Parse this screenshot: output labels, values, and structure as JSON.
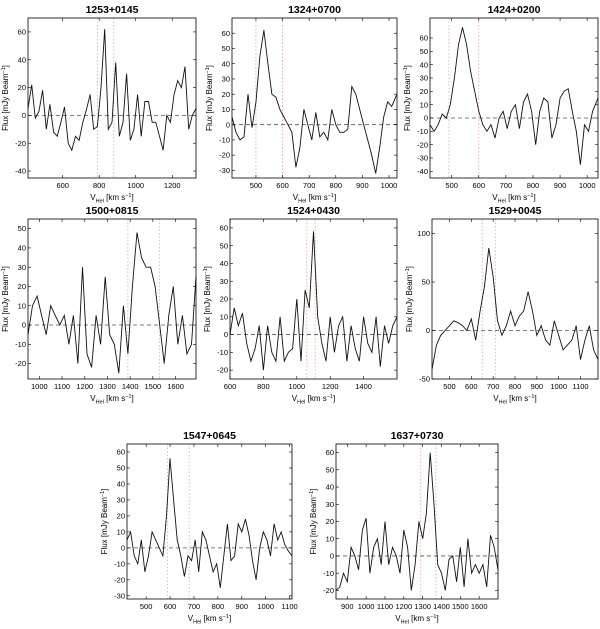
{
  "figure": {
    "x_label_main": "V",
    "x_label_sub": "Hel",
    "x_label_units": " [km s",
    "x_label_sup": "−1",
    "x_label_end": "]",
    "y_label_main": "Flux [mJy Beam",
    "y_label_sup": "−1",
    "y_label_end": "]"
  },
  "chart_data": [
    {
      "type": "line",
      "title": "1253+0145",
      "xlim": [
        410,
        1330
      ],
      "ylim": [
        -45,
        70
      ],
      "xticks": [
        600,
        800,
        1000,
        1200
      ],
      "yticks": [
        -40,
        -20,
        0,
        20,
        40,
        60
      ],
      "zero_line": true,
      "markers": [
        790,
        880
      ],
      "x": [
        410,
        430,
        450,
        470,
        490,
        510,
        530,
        550,
        570,
        590,
        610,
        630,
        650,
        670,
        690,
        710,
        730,
        750,
        770,
        790,
        810,
        830,
        850,
        870,
        890,
        910,
        930,
        950,
        970,
        990,
        1010,
        1030,
        1050,
        1070,
        1090,
        1110,
        1130,
        1150,
        1170,
        1190,
        1210,
        1230,
        1250,
        1270,
        1290,
        1310,
        1330
      ],
      "y": [
        5,
        22,
        -2,
        3,
        18,
        -10,
        8,
        -12,
        -15,
        -5,
        6,
        -20,
        -25,
        -15,
        -18,
        -5,
        4,
        15,
        -10,
        -8,
        20,
        62,
        -10,
        -5,
        38,
        -15,
        -5,
        30,
        -18,
        -10,
        15,
        -15,
        10,
        10,
        -5,
        -5,
        -15,
        -25,
        0,
        -5,
        15,
        25,
        20,
        35,
        -10,
        0,
        5
      ]
    },
    {
      "type": "line",
      "title": "1324+0700",
      "xlim": [
        410,
        1030
      ],
      "ylim": [
        -35,
        70
      ],
      "xticks": [
        500,
        600,
        700,
        800,
        900,
        1000
      ],
      "yticks": [
        -30,
        -20,
        -10,
        0,
        10,
        20,
        30,
        40,
        50,
        60
      ],
      "zero_line": true,
      "markers": [
        500,
        600
      ],
      "x": [
        410,
        425,
        440,
        455,
        470,
        485,
        500,
        515,
        530,
        545,
        560,
        575,
        590,
        605,
        620,
        635,
        650,
        665,
        680,
        695,
        710,
        725,
        740,
        755,
        770,
        785,
        800,
        815,
        830,
        845,
        860,
        875,
        890,
        905,
        920,
        935,
        950,
        965,
        980,
        995,
        1010,
        1030
      ],
      "y": [
        5,
        -5,
        -10,
        -8,
        20,
        -2,
        15,
        45,
        62,
        40,
        20,
        18,
        10,
        5,
        0,
        -5,
        -28,
        -15,
        10,
        0,
        -10,
        8,
        -8,
        -5,
        -10,
        10,
        0,
        -5,
        -5,
        -3,
        25,
        20,
        10,
        0,
        -10,
        -20,
        -32,
        -15,
        5,
        15,
        12,
        20
      ]
    },
    {
      "type": "line",
      "title": "1424+0200",
      "xlim": [
        420,
        1040
      ],
      "ylim": [
        -45,
        75
      ],
      "xticks": [
        500,
        600,
        700,
        800,
        900,
        1000
      ],
      "yticks": [
        -40,
        -30,
        -20,
        -10,
        0,
        10,
        20,
        30,
        40,
        50,
        60
      ],
      "zero_line": true,
      "markers": [
        490,
        600
      ],
      "x": [
        420,
        435,
        450,
        465,
        480,
        495,
        510,
        525,
        540,
        555,
        570,
        585,
        600,
        615,
        630,
        645,
        660,
        675,
        690,
        705,
        720,
        735,
        750,
        765,
        780,
        795,
        810,
        825,
        840,
        855,
        870,
        885,
        900,
        915,
        930,
        945,
        960,
        975,
        990,
        1005,
        1020,
        1040
      ],
      "y": [
        -5,
        -10,
        -5,
        3,
        0,
        10,
        30,
        55,
        68,
        55,
        35,
        20,
        5,
        -5,
        -10,
        -5,
        -15,
        0,
        5,
        -8,
        5,
        10,
        -8,
        12,
        18,
        5,
        -20,
        5,
        15,
        12,
        -15,
        -5,
        15,
        20,
        22,
        5,
        -10,
        -35,
        -5,
        -10,
        5,
        15
      ]
    },
    {
      "type": "line",
      "title": "1500+0815",
      "xlim": [
        950,
        1690
      ],
      "ylim": [
        -28,
        55
      ],
      "xticks": [
        1000,
        1100,
        1200,
        1300,
        1400,
        1500,
        1600
      ],
      "yticks": [
        -20,
        -10,
        0,
        10,
        20,
        30,
        40,
        50
      ],
      "zero_line": true,
      "markers": [
        1390,
        1530
      ],
      "x": [
        950,
        970,
        990,
        1010,
        1030,
        1050,
        1070,
        1090,
        1110,
        1130,
        1150,
        1170,
        1190,
        1210,
        1230,
        1250,
        1270,
        1290,
        1310,
        1330,
        1350,
        1370,
        1390,
        1410,
        1430,
        1450,
        1470,
        1490,
        1510,
        1530,
        1550,
        1570,
        1590,
        1610,
        1630,
        1650,
        1670,
        1690
      ],
      "y": [
        -5,
        10,
        15,
        5,
        -5,
        10,
        5,
        0,
        5,
        -10,
        5,
        -20,
        30,
        -15,
        -22,
        5,
        -10,
        25,
        -5,
        -10,
        -25,
        10,
        -15,
        20,
        48,
        35,
        30,
        30,
        20,
        0,
        -20,
        5,
        20,
        -10,
        5,
        -15,
        -10,
        25
      ]
    },
    {
      "type": "line",
      "title": "1524+0430",
      "xlim": [
        600,
        1600
      ],
      "ylim": [
        -25,
        65
      ],
      "xticks": [
        600,
        800,
        1000,
        1200,
        1400
      ],
      "yticks": [
        -20,
        -10,
        0,
        10,
        20,
        30,
        40,
        50,
        60
      ],
      "zero_line": true,
      "markers": [
        1060,
        1110
      ],
      "x": [
        600,
        625,
        650,
        675,
        700,
        725,
        750,
        775,
        800,
        825,
        850,
        875,
        900,
        925,
        950,
        975,
        1000,
        1025,
        1050,
        1075,
        1100,
        1125,
        1150,
        1175,
        1200,
        1225,
        1250,
        1275,
        1300,
        1325,
        1350,
        1375,
        1400,
        1425,
        1450,
        1475,
        1500,
        1525,
        1550,
        1575,
        1600
      ],
      "y": [
        0,
        15,
        5,
        12,
        -5,
        -15,
        -8,
        5,
        -20,
        5,
        -10,
        -15,
        10,
        -15,
        -10,
        -8,
        20,
        -15,
        25,
        15,
        58,
        10,
        -5,
        -15,
        10,
        -10,
        5,
        10,
        -15,
        5,
        -8,
        -15,
        10,
        -5,
        -10,
        10,
        -18,
        5,
        -5,
        5,
        10
      ]
    },
    {
      "type": "line",
      "title": "1529+0045",
      "xlim": [
        420,
        1180
      ],
      "ylim": [
        -50,
        115
      ],
      "xticks": [
        500,
        600,
        700,
        800,
        900,
        1000,
        1100
      ],
      "yticks": [
        -50,
        0,
        50,
        100
      ],
      "zero_line": true,
      "markers": [
        650,
        710
      ],
      "x": [
        420,
        440,
        460,
        480,
        500,
        520,
        540,
        560,
        580,
        600,
        620,
        640,
        660,
        680,
        700,
        720,
        740,
        760,
        780,
        800,
        820,
        840,
        860,
        880,
        900,
        920,
        940,
        960,
        980,
        1000,
        1020,
        1040,
        1060,
        1080,
        1100,
        1120,
        1140,
        1160,
        1180
      ],
      "y": [
        -40,
        -15,
        -5,
        0,
        5,
        10,
        8,
        5,
        0,
        12,
        -10,
        20,
        45,
        85,
        55,
        10,
        -5,
        5,
        20,
        5,
        15,
        20,
        40,
        20,
        -5,
        5,
        -10,
        -15,
        10,
        -5,
        -20,
        -15,
        -10,
        5,
        -30,
        -10,
        5,
        -20,
        -30
      ]
    },
    {
      "type": "line",
      "title": "1547+0645",
      "xlim": [
        420,
        1110
      ],
      "ylim": [
        -32,
        65
      ],
      "xticks": [
        500,
        600,
        700,
        800,
        900,
        1000,
        1100
      ],
      "yticks": [
        -30,
        -20,
        -10,
        0,
        10,
        20,
        30,
        40,
        50,
        60
      ],
      "zero_line": true,
      "markers": [
        590,
        680
      ],
      "x": [
        420,
        435,
        450,
        465,
        480,
        495,
        510,
        525,
        540,
        555,
        570,
        585,
        600,
        615,
        630,
        645,
        660,
        675,
        690,
        705,
        720,
        735,
        750,
        765,
        780,
        795,
        810,
        825,
        840,
        855,
        870,
        885,
        900,
        915,
        930,
        945,
        960,
        975,
        990,
        1005,
        1020,
        1035,
        1050,
        1065,
        1080,
        1095,
        1110
      ],
      "y": [
        5,
        10,
        -5,
        -10,
        5,
        -15,
        -5,
        10,
        5,
        0,
        -5,
        20,
        56,
        30,
        5,
        -5,
        -18,
        -5,
        -8,
        5,
        -15,
        10,
        5,
        -5,
        -15,
        -10,
        -25,
        -5,
        15,
        -8,
        -5,
        15,
        10,
        18,
        8,
        -8,
        -20,
        0,
        10,
        5,
        -5,
        15,
        5,
        10,
        2,
        -2,
        -5
      ]
    },
    {
      "type": "line",
      "title": "1637+0730",
      "xlim": [
        840,
        1700
      ],
      "ylim": [
        -25,
        65
      ],
      "xticks": [
        900,
        1000,
        1100,
        1200,
        1300,
        1400,
        1500,
        1600
      ],
      "yticks": [
        -20,
        -10,
        0,
        10,
        20,
        30,
        40,
        50,
        60
      ],
      "zero_line": true,
      "markers": [
        1290,
        1370
      ],
      "x": [
        840,
        860,
        880,
        900,
        920,
        940,
        960,
        980,
        1000,
        1020,
        1040,
        1060,
        1080,
        1100,
        1120,
        1140,
        1160,
        1180,
        1200,
        1220,
        1240,
        1260,
        1280,
        1300,
        1320,
        1340,
        1360,
        1380,
        1400,
        1420,
        1440,
        1460,
        1480,
        1500,
        1520,
        1540,
        1560,
        1580,
        1600,
        1620,
        1640,
        1660,
        1680,
        1700
      ],
      "y": [
        -20,
        -18,
        -10,
        -15,
        5,
        0,
        -8,
        15,
        22,
        -10,
        5,
        10,
        -5,
        20,
        -5,
        5,
        0,
        -10,
        15,
        5,
        -20,
        -5,
        20,
        10,
        25,
        60,
        30,
        -5,
        -10,
        -20,
        -2,
        0,
        -15,
        5,
        -18,
        10,
        -10,
        -5,
        -10,
        -5,
        -18,
        12,
        5,
        -8
      ]
    }
  ]
}
